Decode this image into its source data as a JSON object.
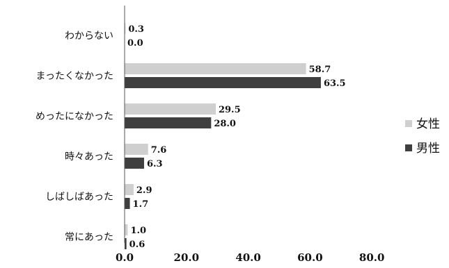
{
  "chart_data": {
    "type": "bar",
    "orientation": "horizontal",
    "categories": [
      "わからない",
      "まったくなかった",
      "めったになかった",
      "時々あった",
      "しばしばあった",
      "常にあった"
    ],
    "series": [
      {
        "name": "女性",
        "color": "#cfcfcf",
        "values": [
          0.3,
          58.7,
          29.5,
          7.6,
          2.9,
          1.0
        ]
      },
      {
        "name": "男性",
        "color": "#3f3f3f",
        "values": [
          0.0,
          63.5,
          28.0,
          6.3,
          1.7,
          0.6
        ]
      }
    ],
    "value_labels": [
      [
        "0.3",
        "58.7",
        "29.5",
        "7.6",
        "2.9",
        "1.0"
      ],
      [
        "0.0",
        "63.5",
        "28.0",
        "6.3",
        "1.7",
        "0.6"
      ]
    ],
    "xticks": [
      "0.0",
      "20.0",
      "40.0",
      "60.0",
      "80.0"
    ],
    "xlim": [
      0,
      80
    ],
    "grid": false,
    "legend": "right"
  }
}
